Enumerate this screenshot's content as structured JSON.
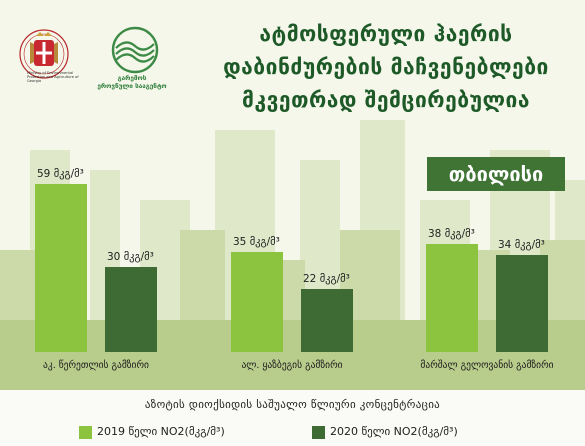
{
  "header": {
    "title_lines": [
      "ატმოსფერული ჰაერის",
      "დაბინძურების მაჩვენებლები",
      "მკვეთრად შემცირებულია"
    ],
    "gov_logo_text": "Ministry of Environmental Protection and Agriculture of Georgia",
    "agency_name_line1": "გარემოს",
    "agency_name_line2": "ეროვნული სააგენტო"
  },
  "city_badge": "თბილისი",
  "caption": "აზოტის დიოქსიდის საშუალო წლიური კონცენტრაცია",
  "colors": {
    "y2019": "#8cc43f",
    "y2020": "#3d6b33",
    "title": "#1e5a28",
    "badge": "#3f7434"
  },
  "chart_data": {
    "type": "bar",
    "title": "აზოტის დიოქსიდის საშუალო წლიური კონცენტრაცია",
    "categories": [
      "აკ. წერეთლის გამზირი",
      "ალ. ყაზბეგის გამზირი",
      "მარშალ გელოვანის გამზირი"
    ],
    "series": [
      {
        "name": "2019 წელი NO2(მკგ/მ³)",
        "values": [
          59,
          35,
          38
        ]
      },
      {
        "name": "2020 წელი NO2(მკგ/მ³)",
        "values": [
          30,
          22,
          34
        ]
      }
    ],
    "value_labels": [
      [
        "59 მკგ/მ³",
        "30 მკგ/მ³"
      ],
      [
        "35 მკგ/მ³",
        "22 მკგ/მ³"
      ],
      [
        "38 მკგ/მ³",
        "34 მკგ/მ³"
      ]
    ],
    "legend_position": "bottom",
    "grid": false
  }
}
